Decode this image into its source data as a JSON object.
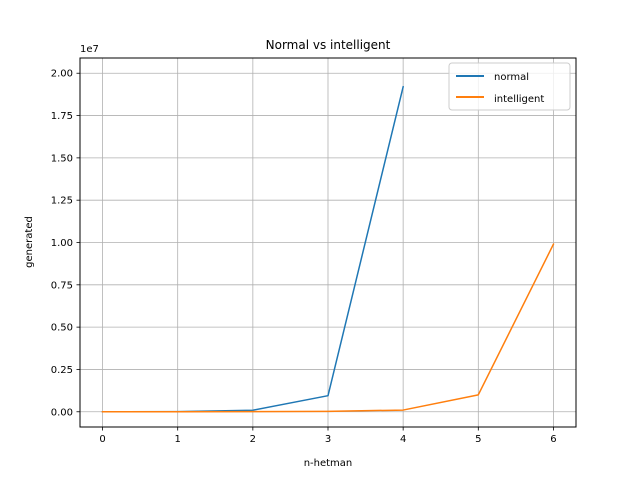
{
  "chart_data": {
    "type": "line",
    "title": "Normal vs intelligent",
    "xlabel": "n-hetman",
    "ylabel": "generated",
    "y_offset_label": "1e7",
    "x": [
      0,
      1,
      2,
      3,
      4,
      5,
      6
    ],
    "xlim": [
      -0.3,
      6.3
    ],
    "ylim": [
      -900000,
      20900000
    ],
    "x_ticks": [
      0,
      1,
      2,
      3,
      4,
      5,
      6
    ],
    "x_tick_labels": [
      "0",
      "1",
      "2",
      "3",
      "4",
      "5",
      "6"
    ],
    "y_ticks": [
      0,
      2500000,
      5000000,
      7500000,
      10000000,
      12500000,
      15000000,
      17500000,
      20000000
    ],
    "y_tick_labels": [
      "0.00",
      "0.25",
      "0.50",
      "0.75",
      "1.00",
      "1.25",
      "1.50",
      "1.75",
      "2.00"
    ],
    "grid": true,
    "legend_position": "top-right",
    "series": [
      {
        "name": "normal",
        "color": "#1f77b4",
        "x": [
          0,
          1,
          2,
          3,
          4
        ],
        "values": [
          0,
          10000,
          90000,
          950000,
          19200000
        ]
      },
      {
        "name": "intelligent",
        "color": "#ff7f0e",
        "x": [
          0,
          1,
          2,
          3,
          4,
          5,
          6
        ],
        "values": [
          0,
          1000,
          8000,
          25000,
          100000,
          1000000,
          9900000
        ]
      }
    ]
  }
}
